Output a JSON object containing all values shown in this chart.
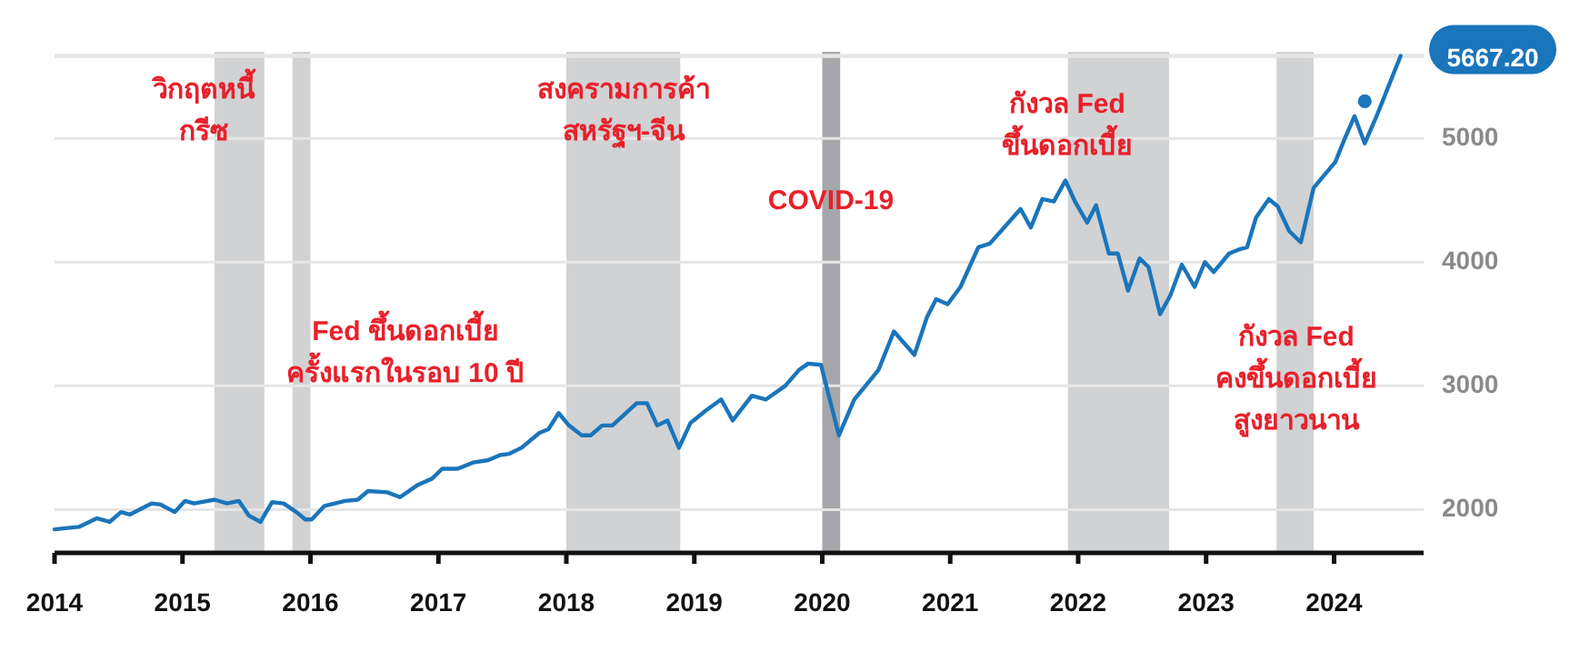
{
  "chart_data": {
    "type": "line",
    "xlim": [
      2014,
      2024.7
    ],
    "ylim": [
      1650,
      5700
    ],
    "xticks": [
      2014,
      2015,
      2016,
      2017,
      2018,
      2019,
      2020,
      2021,
      2022,
      2023,
      2024
    ],
    "yticks": [
      2000,
      3000,
      4000,
      5000
    ],
    "grid": "y",
    "marker": "none",
    "line_style": "solid",
    "series": [
      {
        "color": "#1a75bb",
        "x": [
          2014.0,
          2014.19,
          2014.33,
          2014.43,
          2014.52,
          2014.59,
          2014.76,
          2014.83,
          2014.94,
          2015.02,
          2015.09,
          2015.25,
          2015.35,
          2015.44,
          2015.52,
          2015.61,
          2015.7,
          2015.79,
          2015.89,
          2015.96,
          2016.01,
          2016.11,
          2016.27,
          2016.37,
          2016.45,
          2016.6,
          2016.7,
          2016.84,
          2016.95,
          2017.03,
          2017.15,
          2017.27,
          2017.39,
          2017.48,
          2017.55,
          2017.65,
          2017.79,
          2017.86,
          2017.94,
          2018.02,
          2018.12,
          2018.19,
          2018.28,
          2018.36,
          2018.55,
          2018.63,
          2018.71,
          2018.79,
          2018.88,
          2018.97,
          2019.09,
          2019.21,
          2019.3,
          2019.45,
          2019.56,
          2019.71,
          2019.82,
          2019.89,
          2019.99,
          2020.13,
          2020.25,
          2020.37,
          2020.44,
          2020.56,
          2020.72,
          2020.82,
          2020.89,
          2020.98,
          2021.08,
          2021.22,
          2021.31,
          2021.55,
          2021.63,
          2021.72,
          2021.81,
          2021.9,
          2021.98,
          2022.07,
          2022.14,
          2022.24,
          2022.31,
          2022.39,
          2022.48,
          2022.55,
          2022.64,
          2022.72,
          2022.81,
          2022.91,
          2022.99,
          2023.06,
          2023.18,
          2023.25,
          2023.32,
          2023.39,
          2023.49,
          2023.56,
          2023.65,
          2023.74,
          2023.84,
          2023.92,
          2024.01,
          2024.08,
          2024.16,
          2024.24,
          2024.34,
          2024.52
        ],
        "values": [
          1840,
          1860,
          1930,
          1900,
          1980,
          1960,
          2050,
          2040,
          1980,
          2070,
          2050,
          2080,
          2050,
          2070,
          1950,
          1900,
          2060,
          2050,
          1980,
          1920,
          1920,
          2030,
          2070,
          2080,
          2150,
          2140,
          2100,
          2200,
          2250,
          2330,
          2330,
          2380,
          2400,
          2440,
          2450,
          2500,
          2620,
          2650,
          2780,
          2680,
          2600,
          2600,
          2680,
          2680,
          2860,
          2860,
          2680,
          2720,
          2500,
          2700,
          2800,
          2890,
          2720,
          2920,
          2890,
          3000,
          3130,
          3180,
          3170,
          2600,
          2890,
          3040,
          3130,
          3440,
          3250,
          3560,
          3700,
          3660,
          3800,
          4120,
          4150,
          4430,
          4280,
          4510,
          4490,
          4660,
          4480,
          4320,
          4460,
          4070,
          4070,
          3770,
          4030,
          3960,
          3580,
          3730,
          3980,
          3800,
          4000,
          3920,
          4070,
          4100,
          4120,
          4360,
          4510,
          4450,
          4250,
          4160,
          4600,
          4700,
          4810,
          4990,
          5180,
          4960,
          5200,
          5667.2
        ]
      },
      {
        "type": "scatter",
        "color": "#1a75bb",
        "marker": "circle",
        "x": [
          2024.24
        ],
        "values": [
          5300
        ]
      }
    ],
    "bands": [
      {
        "axis": "x",
        "from": 2015.25,
        "to": 2015.64,
        "label": "วิกฤตหนี้\nกรีซ",
        "color": "#d1d2d4"
      },
      {
        "axis": "x",
        "from": 2015.86,
        "to": 2016.0,
        "label": "Fed ขึ้นดอกเบี้ย\nครั้งแรกในรอบ 10 ปี",
        "color": "#d1d2d4"
      },
      {
        "axis": "x",
        "from": 2018.0,
        "to": 2018.89,
        "label": "สงครามการค้า\nสหรัฐฯ-จีน",
        "color": "#d1d2d4"
      },
      {
        "axis": "x",
        "from": 2020.0,
        "to": 2020.14,
        "label": "COVID-19",
        "color": "#a6a7aa"
      },
      {
        "axis": "x",
        "from": 2021.92,
        "to": 2022.71,
        "label": "กังวล Fed\nขึ้นดอกเบี้ย",
        "color": "#d1d2d4"
      },
      {
        "axis": "x",
        "from": 2023.55,
        "to": 2023.84,
        "label": "กังวล Fed\nคงขึ้นดอกเบี้ย\nสูงยาวนาน",
        "color": "#d1d2d4"
      }
    ],
    "ref_lines": [
      {
        "axis": "y",
        "value": 5667.2,
        "label": "5667.20",
        "color": "#e6e6e6"
      }
    ]
  }
}
